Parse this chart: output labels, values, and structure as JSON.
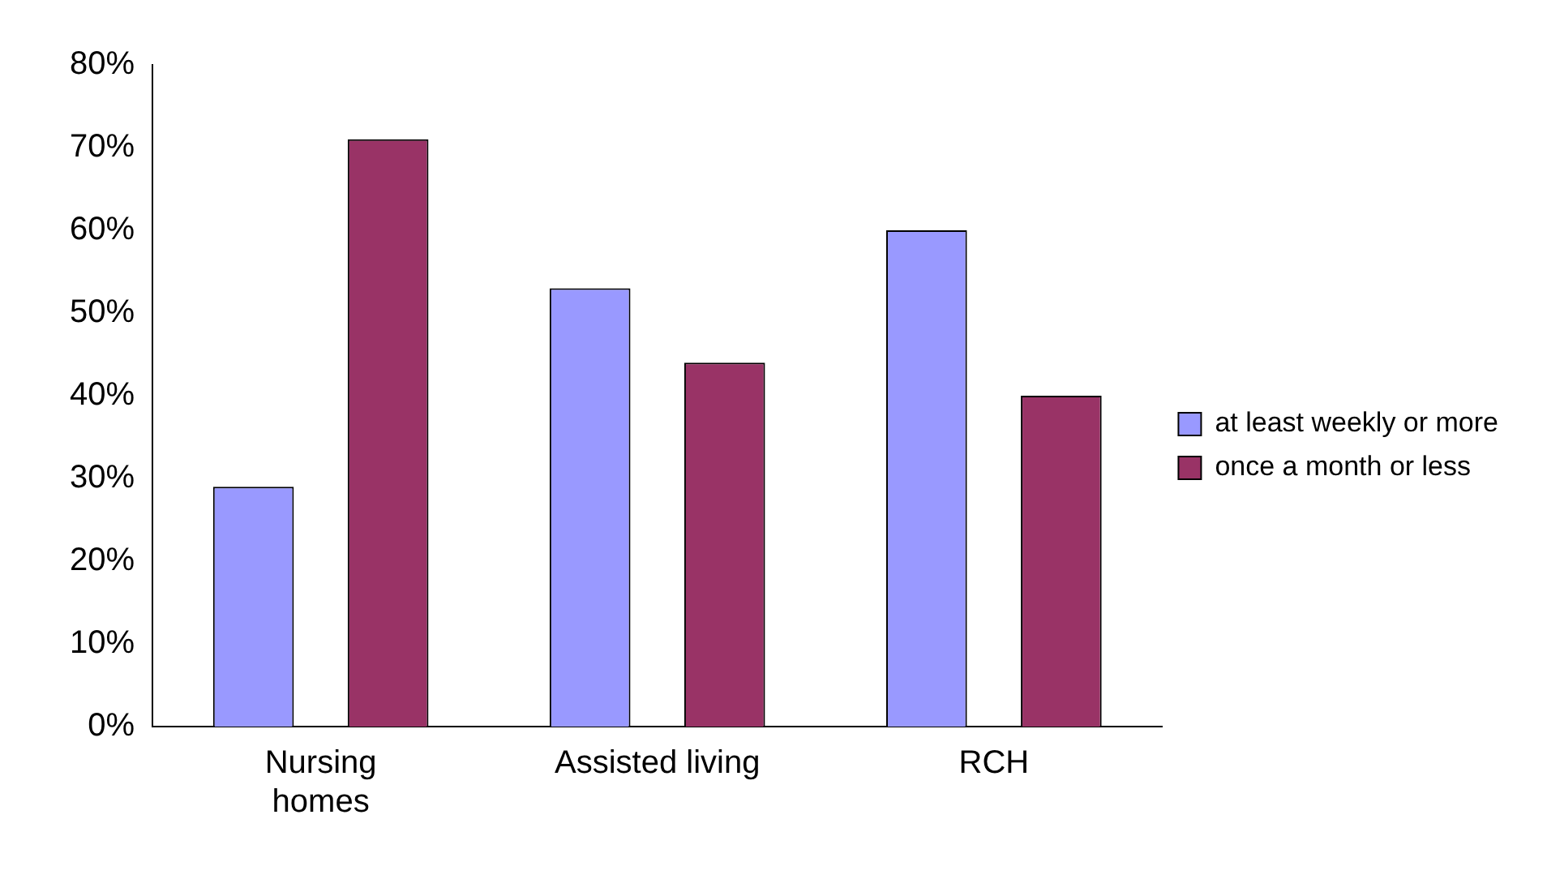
{
  "chart_data": {
    "type": "bar",
    "categories": [
      "Nursing homes",
      "Assisted living",
      "RCH"
    ],
    "series": [
      {
        "name": "at least weekly or more",
        "color": "#9999ff",
        "values": [
          29,
          53,
          60
        ]
      },
      {
        "name": "once a month or less",
        "color": "#993366",
        "values": [
          71,
          44,
          40
        ]
      }
    ],
    "ylim": [
      0,
      80
    ],
    "yticks": [
      {
        "value": 0,
        "label": "0%"
      },
      {
        "value": 10,
        "label": "10%"
      },
      {
        "value": 20,
        "label": "20%"
      },
      {
        "value": 30,
        "label": "30%"
      },
      {
        "value": 40,
        "label": "40%"
      },
      {
        "value": 50,
        "label": "50%"
      },
      {
        "value": 60,
        "label": "60%"
      },
      {
        "value": 70,
        "label": "70%"
      },
      {
        "value": 80,
        "label": "80%"
      }
    ],
    "grid": false,
    "legend": "right"
  }
}
